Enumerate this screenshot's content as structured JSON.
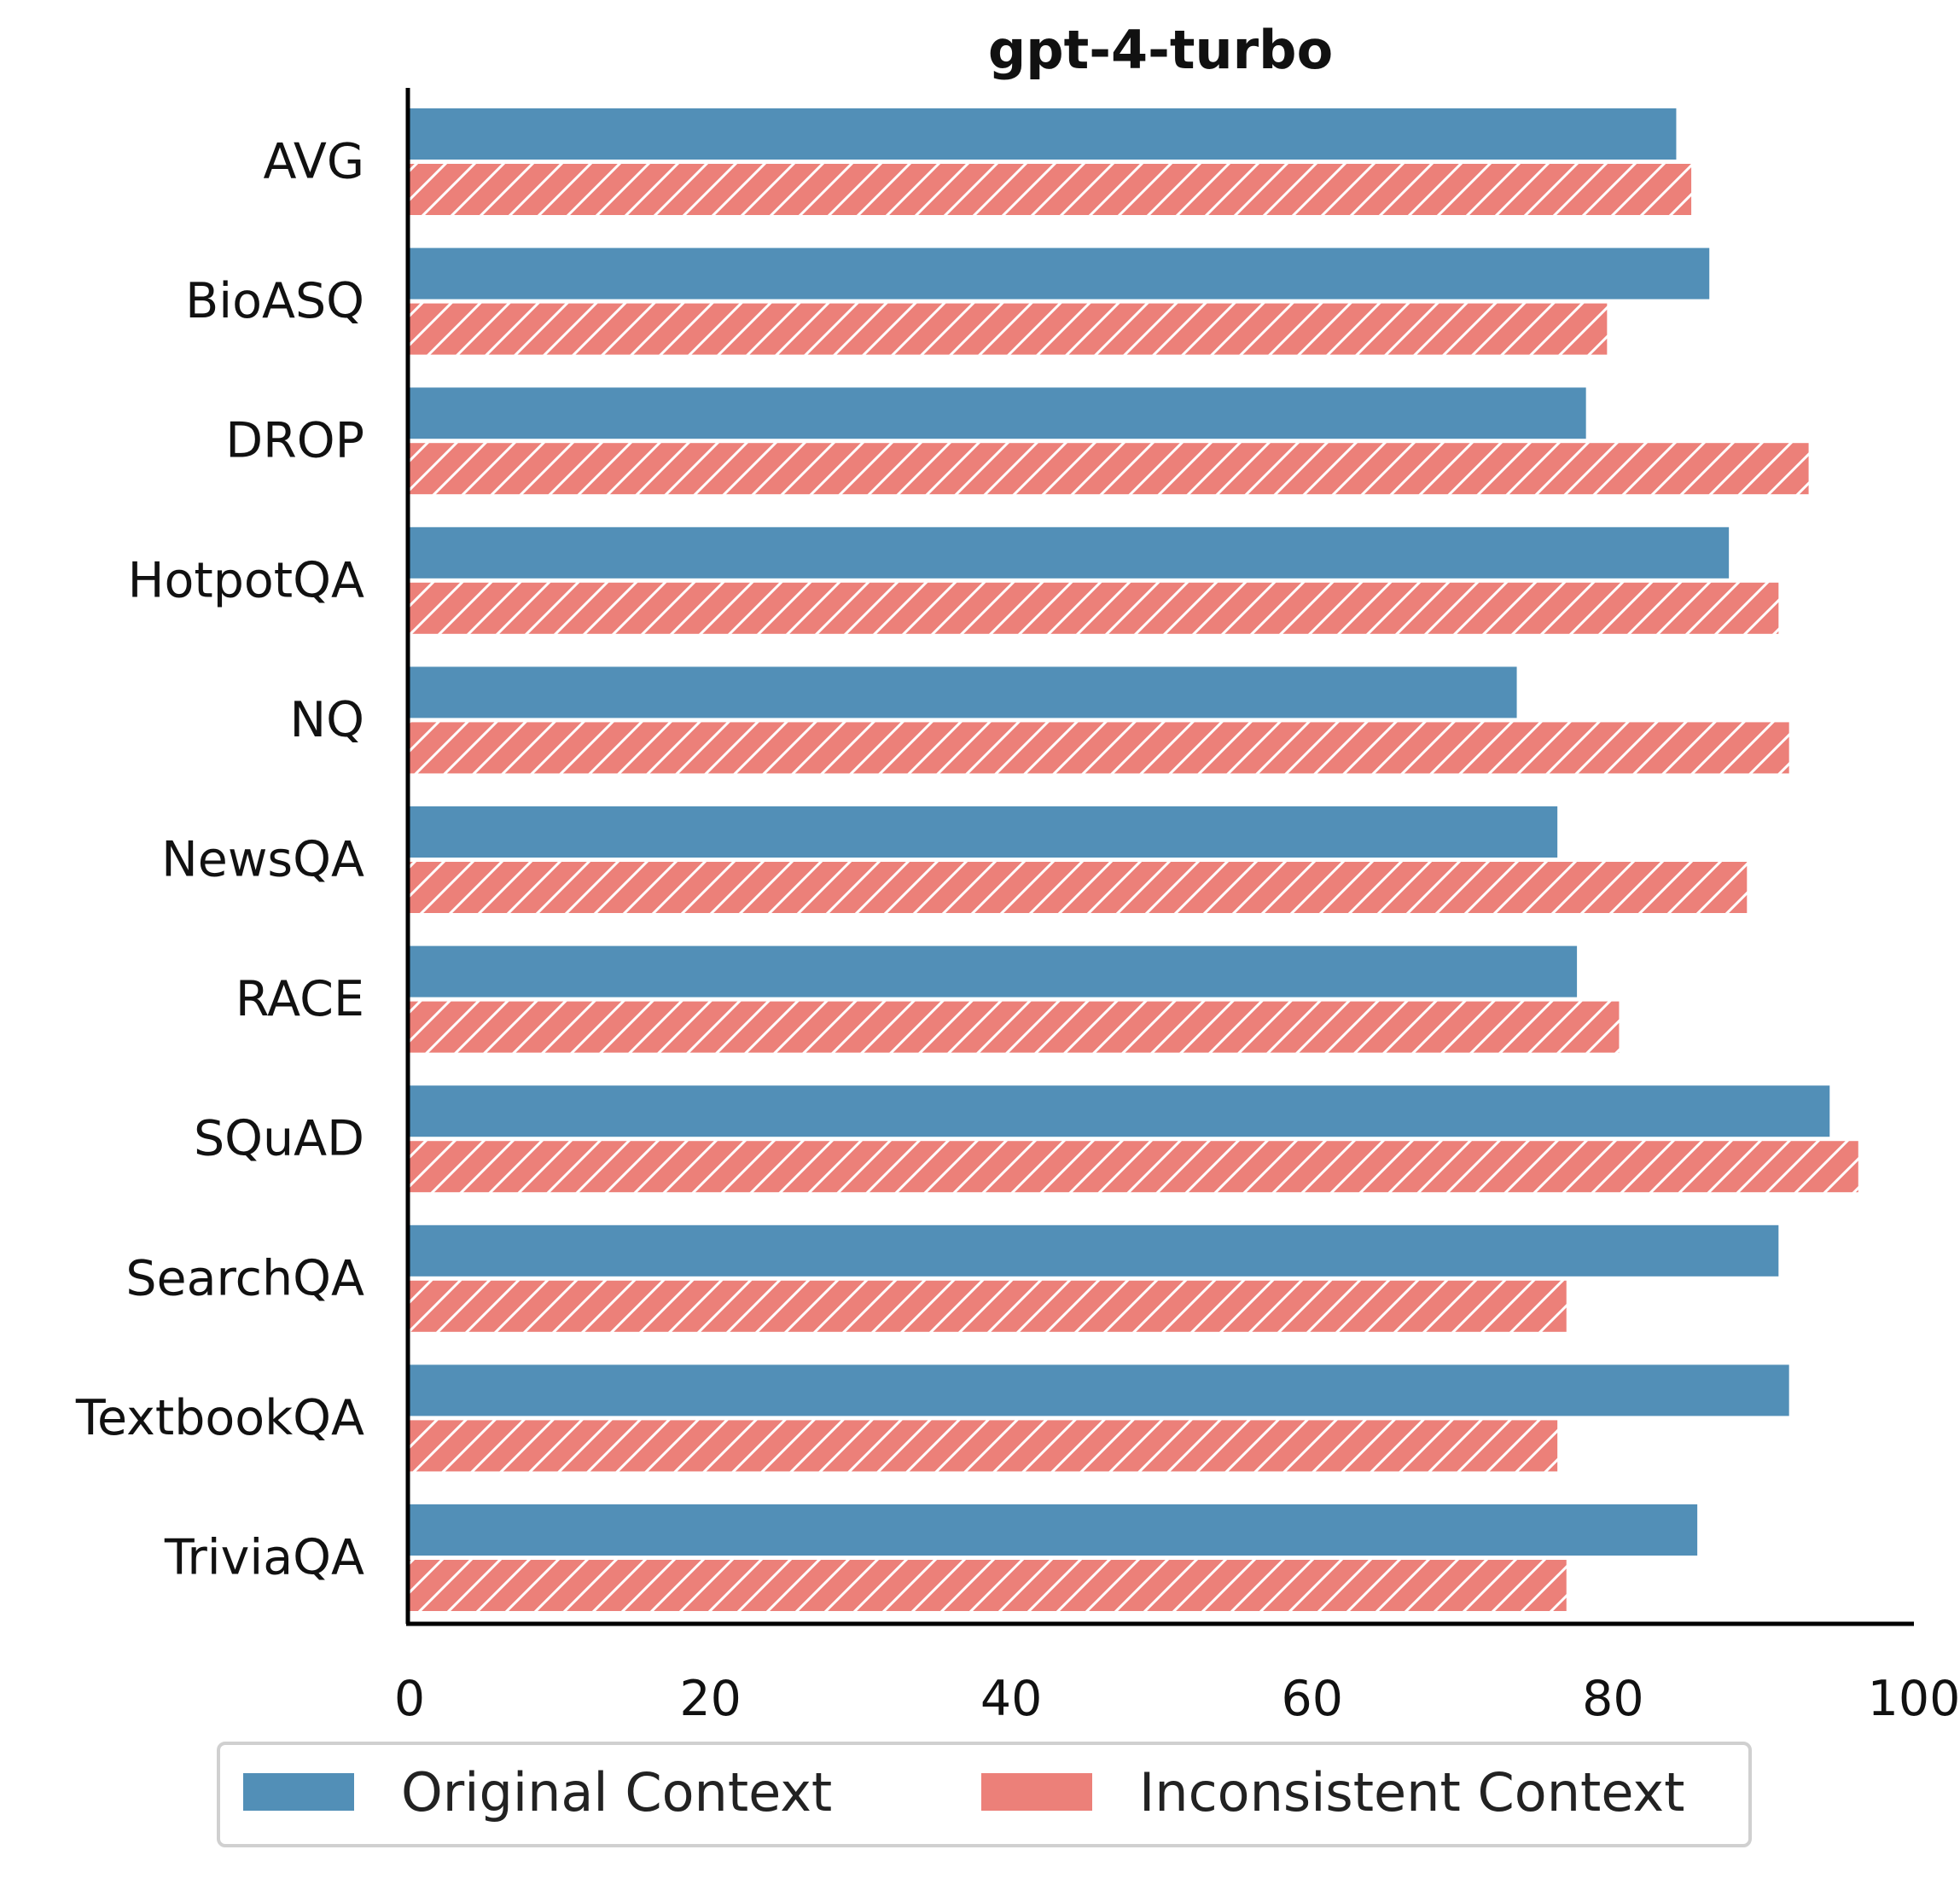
{
  "chart_data": {
    "type": "bar",
    "orientation": "horizontal",
    "title": "gpt-4-turbo",
    "xlabel": "",
    "ylabel": "",
    "categories": [
      "AVG",
      "BioASQ",
      "DROP",
      "HotpotQA",
      "NQ",
      "NewsQA",
      "RACE",
      "SQuAD",
      "SearchQA",
      "TextbookQA",
      "TriviaQA"
    ],
    "series": [
      {
        "name": "Original Context",
        "color": "#528fb7",
        "pattern": "solid",
        "values": [
          84.2,
          86.4,
          78.2,
          87.7,
          73.6,
          76.3,
          77.6,
          94.4,
          91.0,
          91.7,
          85.6
        ]
      },
      {
        "name": "Inconsistent Context",
        "color": "#ec8079",
        "pattern": "hatch",
        "values": [
          85.2,
          79.6,
          93.0,
          91.0,
          91.7,
          88.9,
          80.4,
          96.3,
          76.9,
          76.3,
          76.9
        ]
      }
    ],
    "xlim": [
      0,
      100
    ],
    "xticks": [
      "0",
      "20",
      "40",
      "60",
      "80",
      "100"
    ],
    "grid": false,
    "legend_position": "bottom"
  }
}
